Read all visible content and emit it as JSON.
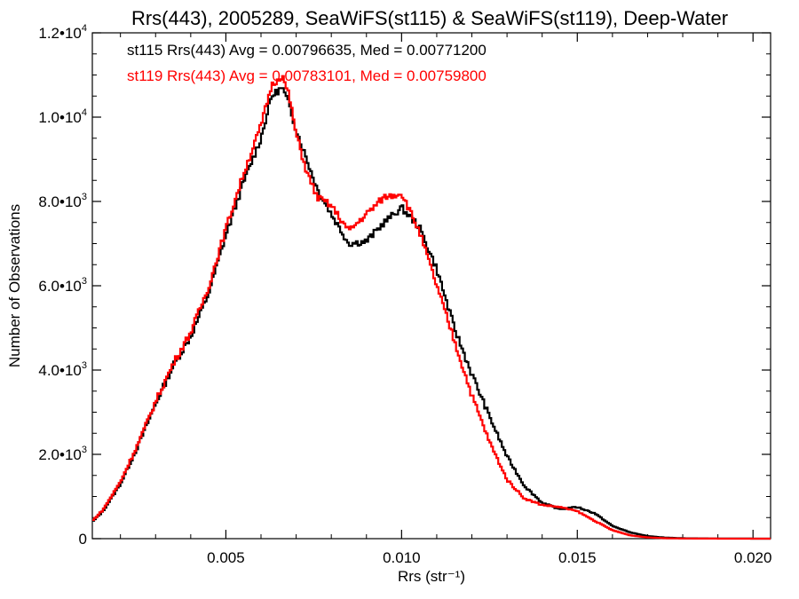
{
  "chart_data": {
    "type": "histogram",
    "title": "Rrs(443), 2005289, SeaWiFS(st115) & SeaWiFS(st119), Deep-Water",
    "xlabel": "Rrs (str⁻¹)",
    "ylabel": "Number of Observations",
    "xlim": [
      0.0012,
      0.0205
    ],
    "ylim": [
      0,
      12000
    ],
    "x_ticks": [
      {
        "value": 0.005,
        "label": "0.005"
      },
      {
        "value": 0.01,
        "label": "0.010"
      },
      {
        "value": 0.015,
        "label": "0.015"
      },
      {
        "value": 0.02,
        "label": "0.020"
      }
    ],
    "y_ticks": [
      {
        "value": 0,
        "mant": "0",
        "exp": ""
      },
      {
        "value": 2000,
        "mant": "2.0•10",
        "exp": "3"
      },
      {
        "value": 4000,
        "mant": "4.0•10",
        "exp": "3"
      },
      {
        "value": 6000,
        "mant": "6.0•10",
        "exp": "3"
      },
      {
        "value": 8000,
        "mant": "8.0•10",
        "exp": "3"
      },
      {
        "value": 10000,
        "mant": "1.0•10",
        "exp": "4"
      },
      {
        "value": 12000,
        "mant": "1.2•10",
        "exp": "4"
      }
    ],
    "series": [
      {
        "name": "st115",
        "color": "#000000",
        "stats_text": "st115 Rrs(443) Avg = 0.00796635, Med = 0.00771200",
        "points": [
          [
            0.0012,
            400
          ],
          [
            0.0015,
            650
          ],
          [
            0.002,
            1300
          ],
          [
            0.0025,
            2200
          ],
          [
            0.003,
            3200
          ],
          [
            0.0035,
            4100
          ],
          [
            0.004,
            4800
          ],
          [
            0.0045,
            5800
          ],
          [
            0.005,
            7200
          ],
          [
            0.0055,
            8450
          ],
          [
            0.006,
            9500
          ],
          [
            0.0063,
            10500
          ],
          [
            0.0066,
            10700
          ],
          [
            0.0068,
            10300
          ],
          [
            0.007,
            9700
          ],
          [
            0.0073,
            9000
          ],
          [
            0.0076,
            8300
          ],
          [
            0.008,
            7700
          ],
          [
            0.0085,
            7000
          ],
          [
            0.009,
            7050
          ],
          [
            0.0095,
            7500
          ],
          [
            0.01,
            7850
          ],
          [
            0.0105,
            7400
          ],
          [
            0.011,
            6400
          ],
          [
            0.0115,
            5000
          ],
          [
            0.012,
            3900
          ],
          [
            0.0125,
            2900
          ],
          [
            0.013,
            1950
          ],
          [
            0.0135,
            1250
          ],
          [
            0.014,
            850
          ],
          [
            0.0145,
            700
          ],
          [
            0.015,
            750
          ],
          [
            0.0155,
            600
          ],
          [
            0.016,
            300
          ],
          [
            0.0165,
            150
          ],
          [
            0.017,
            60
          ],
          [
            0.0175,
            25
          ],
          [
            0.018,
            10
          ],
          [
            0.019,
            3
          ],
          [
            0.0205,
            0
          ]
        ]
      },
      {
        "name": "st119",
        "color": "#ff0000",
        "stats_text": "st119 Rrs(443) Avg = 0.00783101, Med = 0.00759800",
        "points": [
          [
            0.0012,
            420
          ],
          [
            0.0015,
            680
          ],
          [
            0.002,
            1350
          ],
          [
            0.0025,
            2250
          ],
          [
            0.003,
            3250
          ],
          [
            0.0035,
            4150
          ],
          [
            0.004,
            4900
          ],
          [
            0.0045,
            5950
          ],
          [
            0.005,
            7350
          ],
          [
            0.0055,
            8650
          ],
          [
            0.006,
            9800
          ],
          [
            0.0063,
            10750
          ],
          [
            0.0066,
            11000
          ],
          [
            0.0068,
            10500
          ],
          [
            0.007,
            9600
          ],
          [
            0.0073,
            8700
          ],
          [
            0.0076,
            8100
          ],
          [
            0.008,
            7900
          ],
          [
            0.0085,
            7300
          ],
          [
            0.009,
            7700
          ],
          [
            0.0095,
            8100
          ],
          [
            0.01,
            8200
          ],
          [
            0.0105,
            7300
          ],
          [
            0.011,
            6000
          ],
          [
            0.0115,
            4700
          ],
          [
            0.012,
            3400
          ],
          [
            0.0125,
            2300
          ],
          [
            0.013,
            1400
          ],
          [
            0.0135,
            950
          ],
          [
            0.014,
            800
          ],
          [
            0.0145,
            750
          ],
          [
            0.015,
            650
          ],
          [
            0.0155,
            420
          ],
          [
            0.016,
            200
          ],
          [
            0.0165,
            80
          ],
          [
            0.017,
            30
          ],
          [
            0.0175,
            10
          ],
          [
            0.018,
            4
          ],
          [
            0.019,
            1
          ],
          [
            0.0205,
            0
          ]
        ]
      }
    ]
  }
}
